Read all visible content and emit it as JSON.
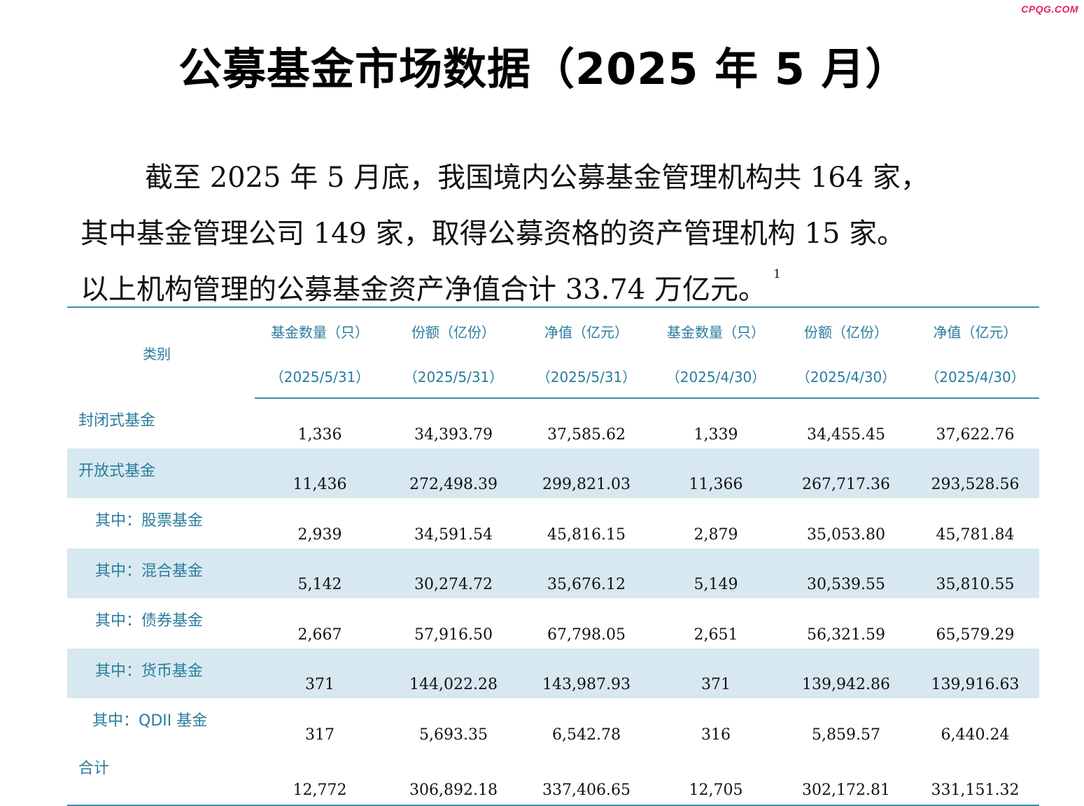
{
  "watermark": "CPQG.COM",
  "title": "公募基金市场数据（2025 年 5 月）",
  "intro": {
    "line1": "截至 2025 年 5 月底，我国境内公募基金管理机构共 164 家，",
    "line2": "其中基金管理公司 149 家，取得公募资格的资产管理机构 15 家。",
    "line3": "以上机构管理的公募基金资产净值合计 33.74 万亿元。",
    "footnote_mark": "1"
  },
  "table": {
    "category_header": "类别",
    "columns": [
      {
        "label": "基金数量（只）",
        "date": "（2025/5/31）"
      },
      {
        "label": "份额（亿份）",
        "date": "（2025/5/31）"
      },
      {
        "label": "净值（亿元）",
        "date": "（2025/5/31）"
      },
      {
        "label": "基金数量（只）",
        "date": "（2025/4/30）"
      },
      {
        "label": "份额（亿份）",
        "date": "（2025/4/30）"
      },
      {
        "label": "净值（亿元）",
        "date": "（2025/4/30）"
      }
    ],
    "rows": [
      {
        "category": "封闭式基金",
        "values": [
          "1,336",
          "34,393.79",
          "37,585.62",
          "1,339",
          "34,455.45",
          "37,622.76"
        ]
      },
      {
        "category": "开放式基金",
        "values": [
          "11,436",
          "272,498.39",
          "299,821.03",
          "11,366",
          "267,717.36",
          "293,528.56"
        ]
      },
      {
        "category": "其中：股票基金",
        "values": [
          "2,939",
          "34,591.54",
          "45,816.15",
          "2,879",
          "35,053.80",
          "45,781.84"
        ]
      },
      {
        "category": "其中：混合基金",
        "values": [
          "5,142",
          "30,274.72",
          "35,676.12",
          "5,149",
          "30,539.55",
          "35,810.55"
        ]
      },
      {
        "category": "其中：债券基金",
        "values": [
          "2,667",
          "57,916.50",
          "67,798.05",
          "2,651",
          "56,321.59",
          "65,579.29"
        ]
      },
      {
        "category": "其中：货币基金",
        "values": [
          "371",
          "144,022.28",
          "143,987.93",
          "371",
          "139,942.86",
          "139,916.63"
        ]
      },
      {
        "category": "其中：QDII 基金",
        "values": [
          "317",
          "5,693.35",
          "6,542.78",
          "316",
          "5,859.57",
          "6,440.24"
        ]
      },
      {
        "category": "合计",
        "values": [
          "12,772",
          "306,892.18",
          "337,406.65",
          "12,705",
          "302,172.81",
          "331,151.32"
        ]
      }
    ]
  }
}
